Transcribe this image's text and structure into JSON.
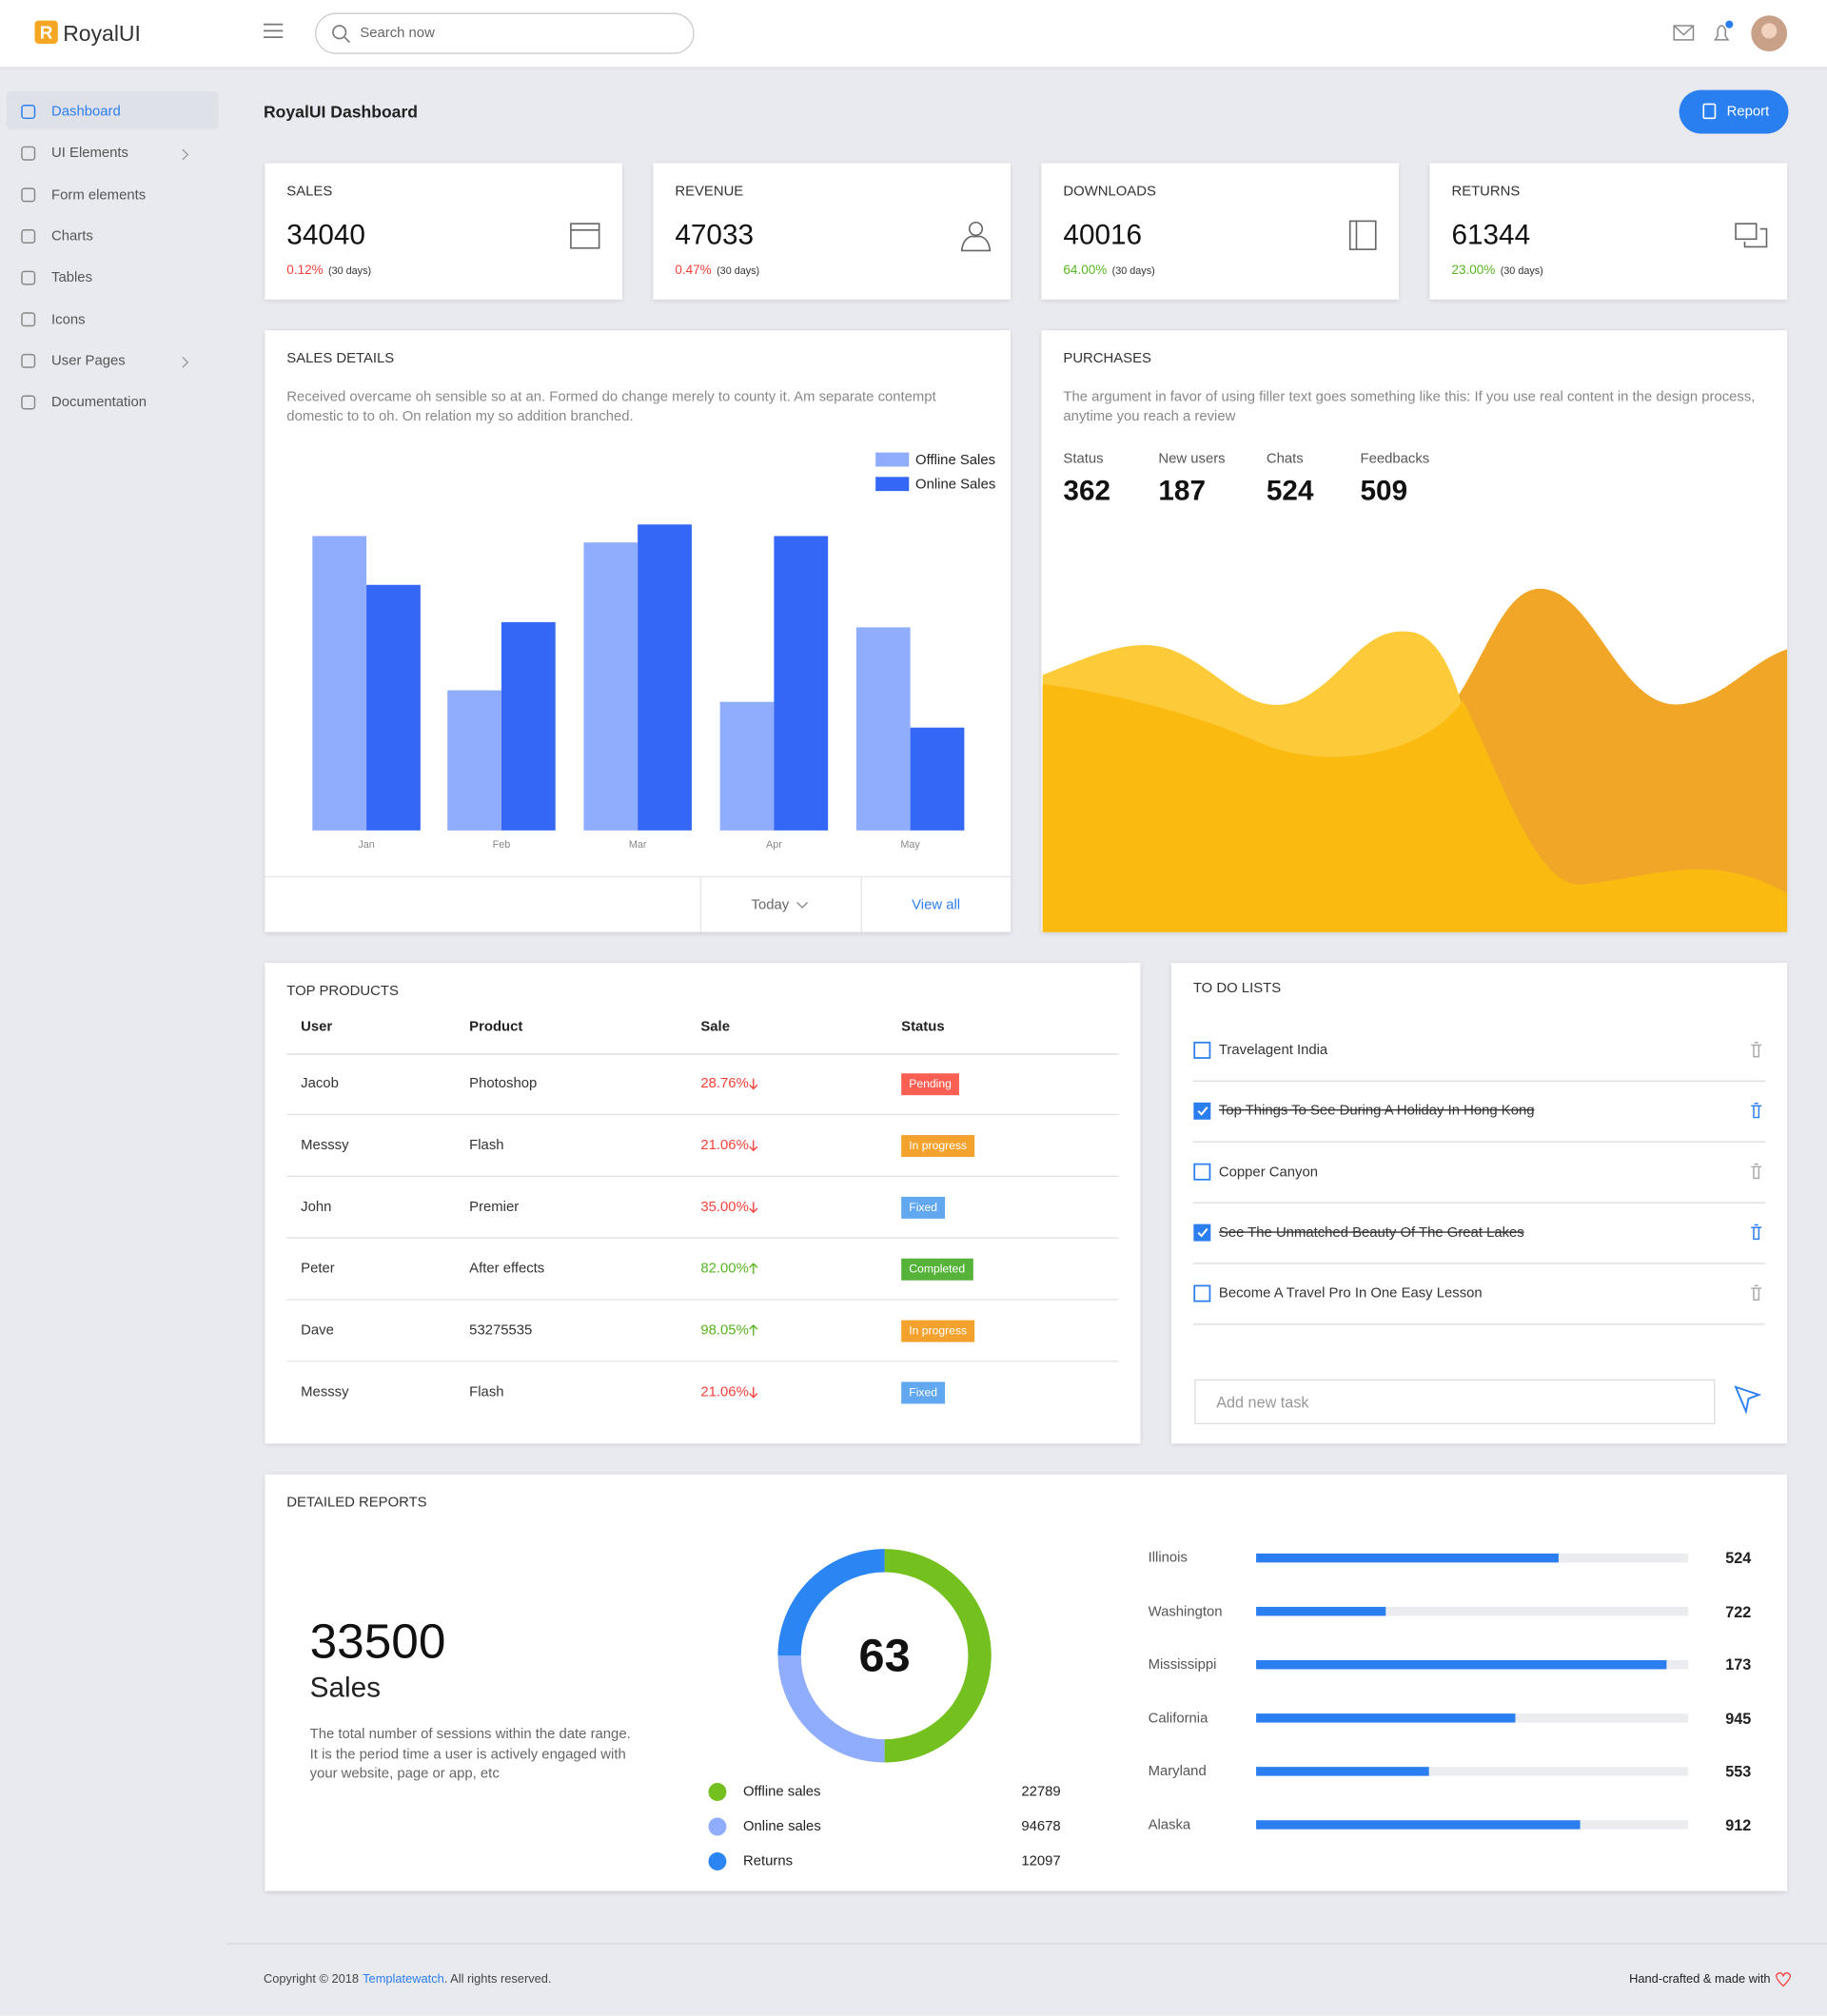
{
  "header": {
    "logo_letter": "R",
    "logo": "RoyalUI",
    "search_placeholder": "Search now"
  },
  "sidebar": [
    {
      "label": "Dashboard",
      "active": true,
      "submenu": false
    },
    {
      "label": "UI Elements",
      "active": false,
      "submenu": true
    },
    {
      "label": "Form elements",
      "active": false,
      "submenu": false
    },
    {
      "label": "Charts",
      "active": false,
      "submenu": false
    },
    {
      "label": "Tables",
      "active": false,
      "submenu": false
    },
    {
      "label": "Icons",
      "active": false,
      "submenu": false
    },
    {
      "label": "User Pages",
      "active": false,
      "submenu": true
    },
    {
      "label": "Documentation",
      "active": false,
      "submenu": false
    }
  ],
  "page_title": "RoyalUI Dashboard",
  "report_button": "Report",
  "stats": [
    {
      "label": "SALES",
      "value": 34040,
      "change": "0.12%",
      "color": "#f5413b",
      "period": "(30 days)"
    },
    {
      "label": "REVENUE",
      "value": 47033,
      "change": "0.47%",
      "color": "#f5413b",
      "period": "(30 days)"
    },
    {
      "label": "DOWNLOADS",
      "value": 40016,
      "change": "64.00%",
      "color": "#57b420",
      "period": "(30 days)"
    },
    {
      "label": "RETURNS",
      "value": 61344,
      "change": "23.00%",
      "color": "#57b420",
      "period": "(30 days)"
    }
  ],
  "sales_details": {
    "title": "SALES DETAILS",
    "description": "Received overcame oh sensible so at an. Formed do change merely to county it. Am separate contempt domestic to to oh. On relation my so addition branched.",
    "chart_data": {
      "type": "bar",
      "categories": [
        "Jan",
        "Feb",
        "Mar",
        "Apr",
        "May"
      ],
      "series": [
        {
          "name": "Offline Sales",
          "color": "#8fadfc",
          "values": [
            229,
            109,
            224,
            100,
            158
          ]
        },
        {
          "name": "Online Sales",
          "color": "#3467f6",
          "values": [
            191,
            162,
            238,
            229,
            80
          ]
        }
      ],
      "ylim": [
        0,
        250
      ]
    },
    "footer_select": "Today",
    "footer_link": "View all"
  },
  "purchases": {
    "title": "PURCHASES",
    "description": "The argument in favor of using filler text goes something like this: If you use real content in the design process, anytime you reach a review",
    "stats": [
      {
        "label": "Status",
        "value": 362
      },
      {
        "label": "New users",
        "value": 187
      },
      {
        "label": "Chats",
        "value": 524
      },
      {
        "label": "Feedbacks",
        "value": 509
      }
    ]
  },
  "top_products": {
    "title": "TOP PRODUCTS",
    "columns": [
      "User",
      "Product",
      "Sale",
      "Status"
    ],
    "rows": [
      {
        "user": "Jacob",
        "product": "Photoshop",
        "sale": "28.76%",
        "trend": "down",
        "status": "Pending",
        "badge": "#f95f53"
      },
      {
        "user": "Messsy",
        "product": "Flash",
        "sale": "21.06%",
        "trend": "down",
        "status": "In progress",
        "badge": "#f3a22d"
      },
      {
        "user": "John",
        "product": "Premier",
        "sale": "35.00%",
        "trend": "down",
        "status": "Fixed",
        "badge": "#62a8f0"
      },
      {
        "user": "Peter",
        "product": "After effects",
        "sale": "82.00%",
        "trend": "up",
        "status": "Completed",
        "badge": "#56b33a"
      },
      {
        "user": "Dave",
        "product": "53275535",
        "sale": "98.05%",
        "trend": "up",
        "status": "In progress",
        "badge": "#f3a22d"
      },
      {
        "user": "Messsy",
        "product": "Flash",
        "sale": "21.06%",
        "trend": "down",
        "status": "Fixed",
        "badge": "#62a8f0"
      }
    ]
  },
  "todo": {
    "title": "TO DO LISTS",
    "items": [
      {
        "text": "Travelagent India",
        "done": false
      },
      {
        "text": "Top Things To See During A Holiday In Hong Kong",
        "done": true
      },
      {
        "text": "Copper Canyon",
        "done": false
      },
      {
        "text": "See The Unmatched Beauty Of The Great Lakes",
        "done": true
      },
      {
        "text": "Become A Travel Pro In One Easy Lesson",
        "done": false
      }
    ],
    "input_placeholder": "Add new task"
  },
  "detailed_reports": {
    "title": "DETAILED REPORTS",
    "total": 33500,
    "total_label": "Sales",
    "description": "The total number of sessions within the date range. It is the period time a user is actively engaged with your website, page or app, etc",
    "donut": {
      "center": 63,
      "segments": [
        {
          "name": "Offline sales",
          "value": 22789,
          "color": "#73c01f",
          "share": 50
        },
        {
          "name": "Online sales",
          "value": 94678,
          "color": "#8fadfc",
          "share": 25
        },
        {
          "name": "Returns",
          "value": 12097,
          "color": "#2b85f2",
          "share": 25
        }
      ]
    },
    "states": [
      {
        "name": "Illinois",
        "value": 524,
        "progress": 70
      },
      {
        "name": "Washington",
        "value": 722,
        "progress": 30
      },
      {
        "name": "Mississippi",
        "value": 173,
        "progress": 95
      },
      {
        "name": "California",
        "value": 945,
        "progress": 60
      },
      {
        "name": "Maryland",
        "value": 553,
        "progress": 40
      },
      {
        "name": "Alaska",
        "value": 912,
        "progress": 75
      }
    ]
  },
  "footer": {
    "copyright": "Copyright © 2018",
    "link": "Templatewatch",
    "rights": ". All rights reserved.",
    "credit": "Hand-crafted & made with"
  }
}
